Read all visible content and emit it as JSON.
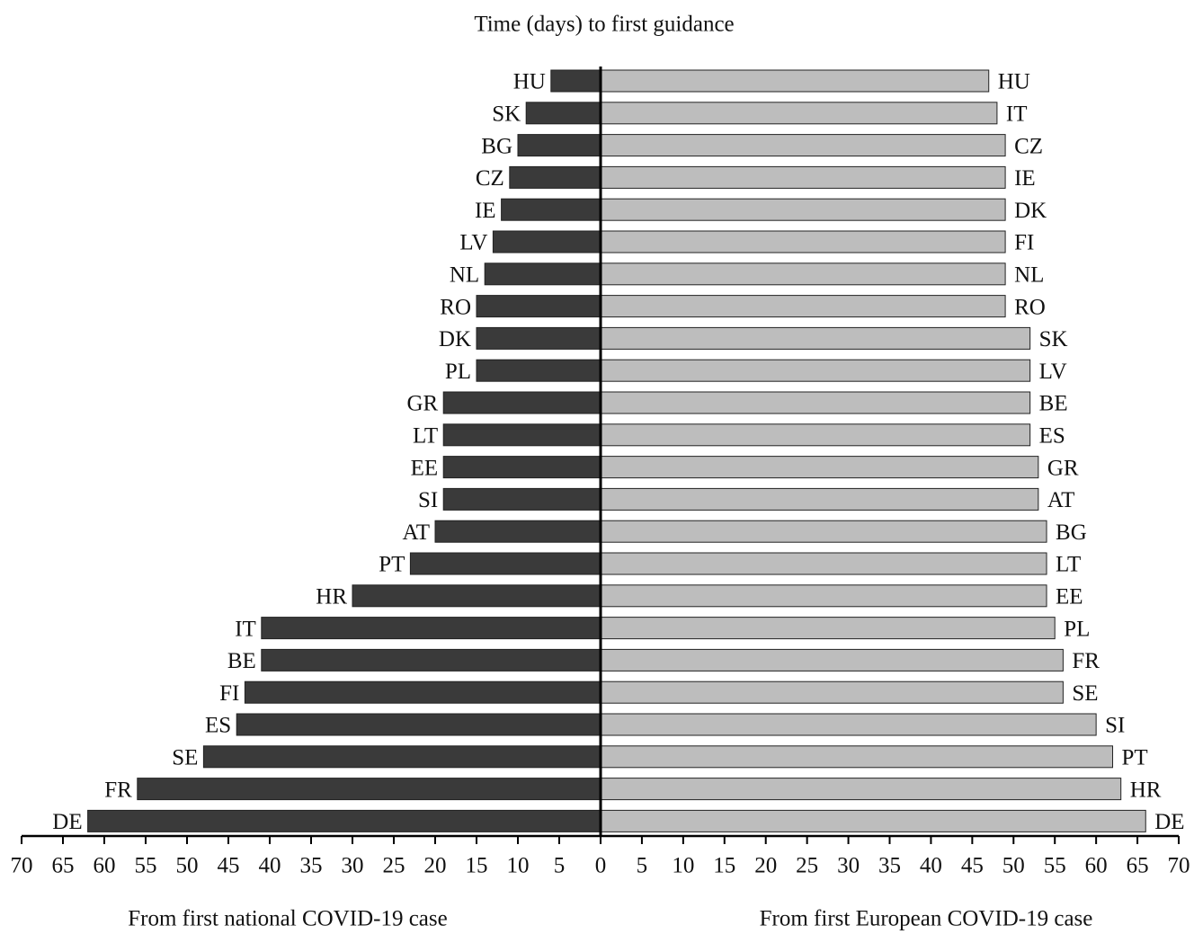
{
  "chart_data": [
    {
      "type": "bar",
      "orientation": "horizontal",
      "title": "Time (days) to first guidance",
      "xlabel": "From first national COVID-19 case",
      "color": "#3a3a3a",
      "categories": [
        "HU",
        "SK",
        "BG",
        "CZ",
        "IE",
        "LV",
        "NL",
        "RO",
        "DK",
        "PL",
        "GR",
        "LT",
        "EE",
        "SI",
        "AT",
        "PT",
        "HR",
        "IT",
        "BE",
        "FI",
        "ES",
        "SE",
        "FR",
        "DE"
      ],
      "values": [
        6,
        9,
        10,
        11,
        12,
        13,
        14,
        15,
        15,
        15,
        19,
        19,
        19,
        19,
        20,
        23,
        30,
        41,
        41,
        43,
        44,
        48,
        56,
        62
      ],
      "xlim": [
        70,
        0
      ],
      "xticks": [
        70,
        65,
        60,
        55,
        50,
        45,
        40,
        35,
        30,
        25,
        20,
        15,
        10,
        5
      ]
    },
    {
      "type": "bar",
      "orientation": "horizontal",
      "xlabel": "From first European COVID-19 case",
      "color": "#bdbdbd",
      "categories": [
        "HU",
        "IT",
        "CZ",
        "IE",
        "DK",
        "FI",
        "NL",
        "RO",
        "SK",
        "LV",
        "BE",
        "ES",
        "GR",
        "AT",
        "BG",
        "LT",
        "EE",
        "PL",
        "FR",
        "SE",
        "SI",
        "PT",
        "HR",
        "DE"
      ],
      "values": [
        47,
        48,
        49,
        49,
        49,
        49,
        49,
        49,
        52,
        52,
        52,
        52,
        53,
        53,
        54,
        54,
        54,
        55,
        56,
        56,
        60,
        62,
        63,
        66
      ],
      "xlim": [
        0,
        70
      ],
      "xticks": [
        0,
        5,
        10,
        15,
        20,
        25,
        30,
        35,
        40,
        45,
        50,
        55,
        60,
        65,
        70
      ]
    }
  ]
}
